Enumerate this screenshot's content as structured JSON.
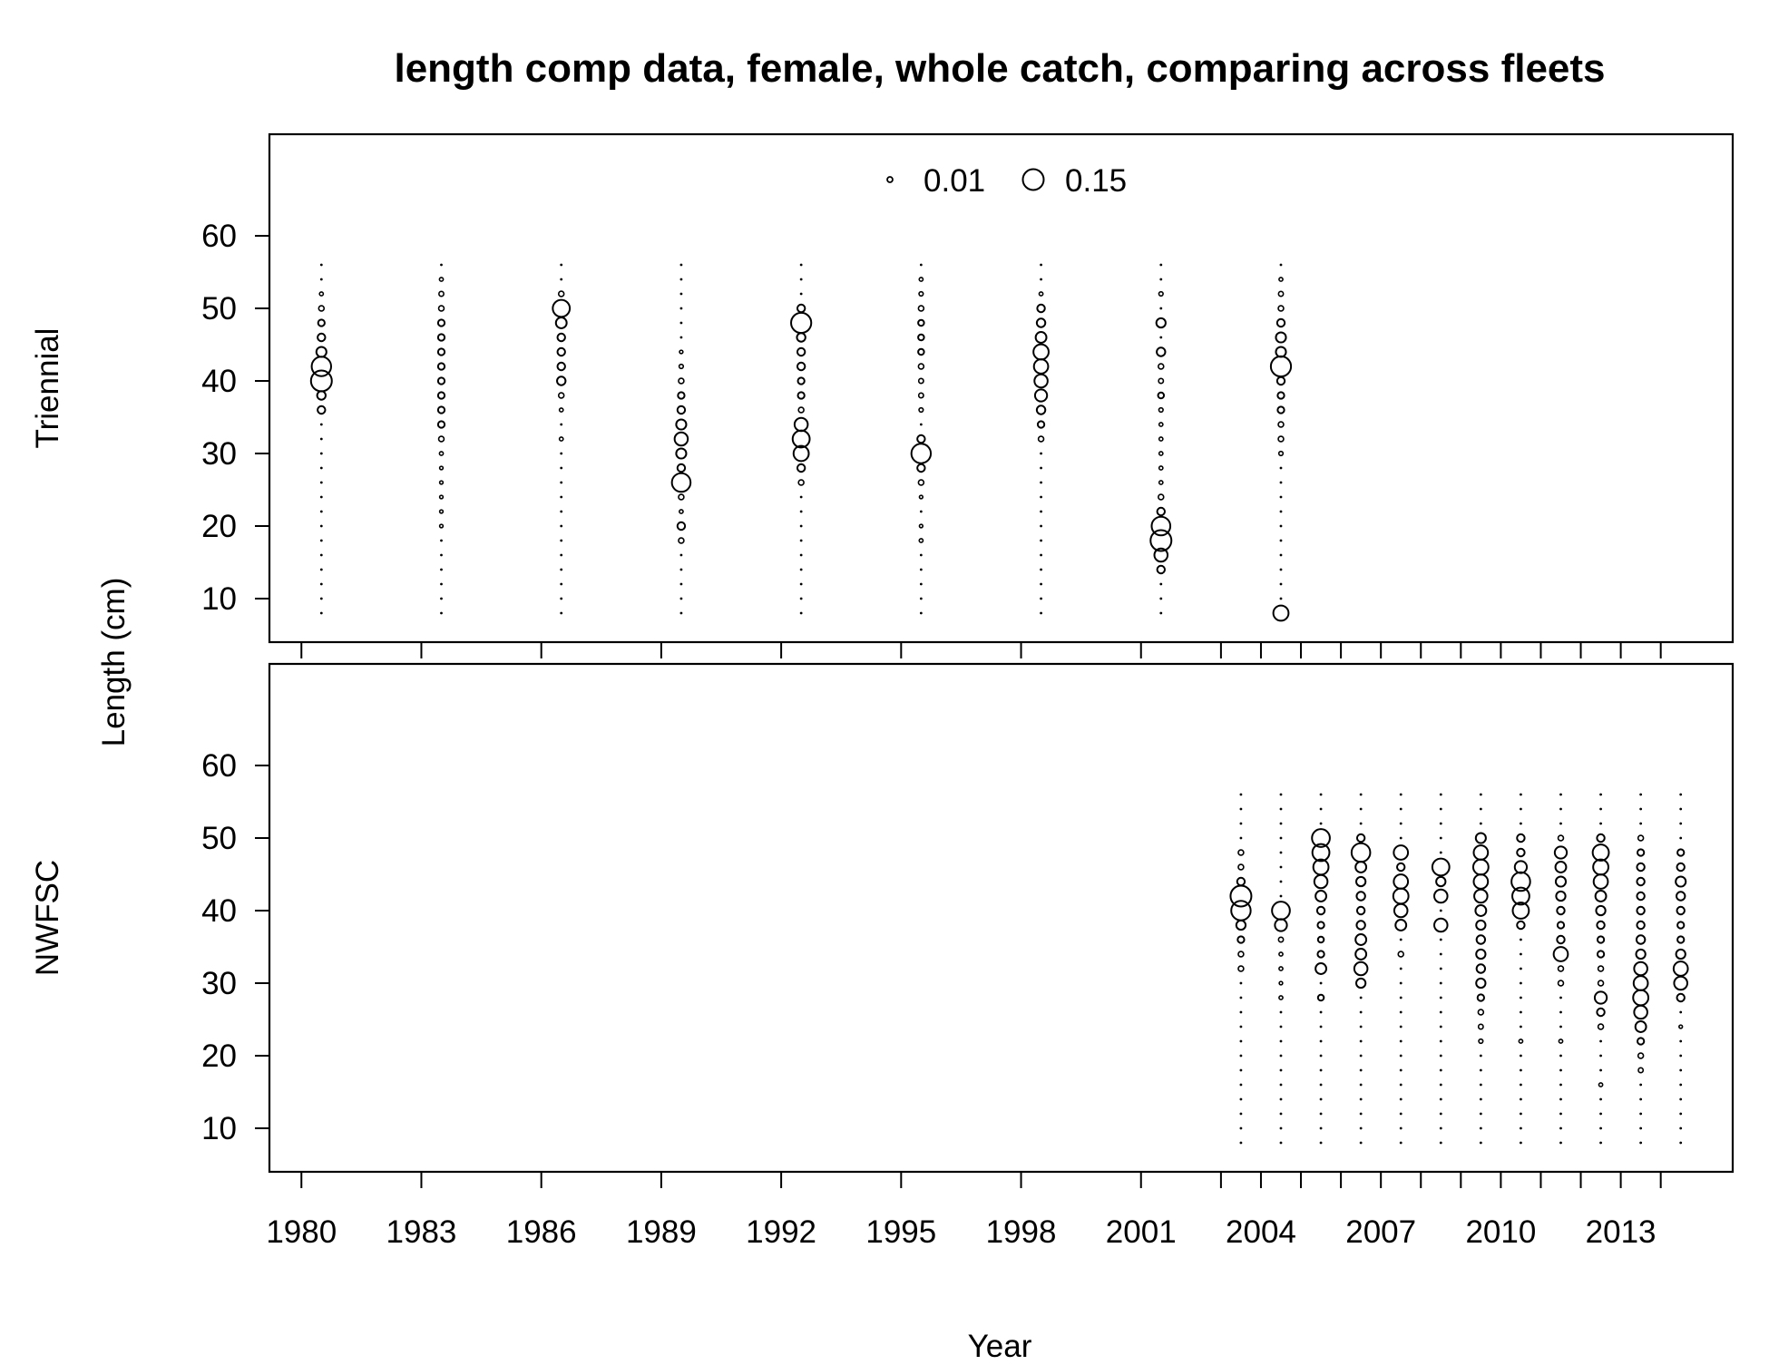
{
  "chart_data": {
    "type": "scatter",
    "title": "length comp data, female, whole catch, comparing across fleets",
    "xlabel": "Year",
    "ylabel": "Length (cm)",
    "xlim": [
      1979.2,
      2015.8
    ],
    "ylim": [
      4,
      74
    ],
    "x_ticks": [
      1980,
      1983,
      1986,
      1989,
      1992,
      1995,
      1998,
      2001,
      2004,
      2007,
      2010,
      2013
    ],
    "x_tick_marks": [
      1980,
      1983,
      1986,
      1989,
      1992,
      1995,
      1998,
      2001,
      2003,
      2004,
      2005,
      2006,
      2007,
      2008,
      2009,
      2010,
      2011,
      2012,
      2013,
      2014
    ],
    "y_ticks": [
      10,
      20,
      30,
      40,
      50,
      60
    ],
    "legend": {
      "position": "top-center",
      "entries": [
        {
          "label": "0.01",
          "value": 0.01
        },
        {
          "label": "0.15",
          "value": 0.15
        }
      ]
    },
    "length_bins": [
      8,
      10,
      12,
      14,
      16,
      18,
      20,
      22,
      24,
      26,
      28,
      30,
      32,
      34,
      36,
      38,
      40,
      42,
      44,
      46,
      48,
      50,
      52,
      54,
      56
    ],
    "panels": [
      {
        "name": "Triennial",
        "years": [
          {
            "year": 1980.5,
            "props": {
              "36": 0.02,
              "38": 0.025,
              "40": 0.15,
              "42": 0.13,
              "44": 0.035,
              "46": 0.02,
              "48": 0.015,
              "50": 0.01,
              "52": 0.005
            }
          },
          {
            "year": 1983.5,
            "props": {
              "20": 0.004,
              "22": 0.004,
              "24": 0.004,
              "26": 0.004,
              "28": 0.004,
              "30": 0.005,
              "32": 0.01,
              "34": 0.015,
              "36": 0.015,
              "38": 0.015,
              "40": 0.015,
              "42": 0.015,
              "44": 0.015,
              "46": 0.015,
              "48": 0.015,
              "50": 0.01,
              "52": 0.008,
              "54": 0.005
            }
          },
          {
            "year": 1986.5,
            "props": {
              "32": 0.005,
              "36": 0.005,
              "38": 0.01,
              "40": 0.025,
              "42": 0.02,
              "44": 0.02,
              "46": 0.02,
              "48": 0.04,
              "50": 0.1,
              "52": 0.01
            }
          },
          {
            "year": 1989.5,
            "props": {
              "18": 0.01,
              "20": 0.02,
              "22": 0.005,
              "24": 0.01,
              "26": 0.12,
              "28": 0.02,
              "30": 0.035,
              "32": 0.06,
              "34": 0.035,
              "36": 0.02,
              "38": 0.015,
              "40": 0.01,
              "42": 0.006,
              "44": 0.004
            }
          },
          {
            "year": 1992.5,
            "props": {
              "26": 0.01,
              "28": 0.02,
              "30": 0.08,
              "32": 0.1,
              "34": 0.06,
              "36": 0.01,
              "38": 0.015,
              "40": 0.015,
              "42": 0.02,
              "44": 0.02,
              "46": 0.025,
              "48": 0.14,
              "50": 0.02
            }
          },
          {
            "year": 1995.5,
            "props": {
              "18": 0.005,
              "20": 0.004,
              "24": 0.004,
              "26": 0.01,
              "28": 0.02,
              "30": 0.13,
              "32": 0.02,
              "36": 0.006,
              "38": 0.008,
              "40": 0.008,
              "42": 0.01,
              "44": 0.012,
              "46": 0.012,
              "48": 0.012,
              "50": 0.01,
              "52": 0.006,
              "54": 0.005
            }
          },
          {
            "year": 1998.5,
            "props": {
              "32": 0.01,
              "34": 0.015,
              "36": 0.025,
              "38": 0.05,
              "40": 0.06,
              "42": 0.07,
              "44": 0.08,
              "46": 0.04,
              "48": 0.025,
              "50": 0.02,
              "52": 0.005
            }
          },
          {
            "year": 2001.5,
            "props": {
              "14": 0.02,
              "16": 0.06,
              "18": 0.15,
              "20": 0.12,
              "22": 0.02,
              "24": 0.01,
              "26": 0.005,
              "28": 0.005,
              "30": 0.005,
              "32": 0.005,
              "34": 0.005,
              "36": 0.006,
              "38": 0.012,
              "40": 0.008,
              "42": 0.01,
              "44": 0.025,
              "48": 0.03,
              "52": 0.006
            }
          },
          {
            "year": 2004.5,
            "props": {
              "8": 0.08,
              "30": 0.006,
              "32": 0.01,
              "34": 0.01,
              "36": 0.015,
              "38": 0.015,
              "40": 0.02,
              "42": 0.14,
              "44": 0.035,
              "46": 0.035,
              "48": 0.02,
              "50": 0.01,
              "52": 0.008,
              "54": 0.005
            }
          }
        ]
      },
      {
        "name": "NWFSC",
        "years": [
          {
            "year": 2003.5,
            "props": {
              "32": 0.01,
              "34": 0.01,
              "36": 0.015,
              "38": 0.03,
              "40": 0.13,
              "42": 0.15,
              "44": 0.02,
              "46": 0.01,
              "48": 0.01
            }
          },
          {
            "year": 2004.5,
            "props": {
              "28": 0.005,
              "30": 0.004,
              "32": 0.005,
              "34": 0.005,
              "36": 0.008,
              "38": 0.05,
              "40": 0.11
            }
          },
          {
            "year": 2005.5,
            "props": {
              "28": 0.012,
              "32": 0.04,
              "34": 0.015,
              "36": 0.012,
              "38": 0.015,
              "40": 0.02,
              "42": 0.04,
              "44": 0.06,
              "46": 0.08,
              "48": 0.1,
              "50": 0.11
            }
          },
          {
            "year": 2006.5,
            "props": {
              "30": 0.03,
              "32": 0.06,
              "34": 0.04,
              "36": 0.04,
              "38": 0.025,
              "40": 0.02,
              "42": 0.025,
              "44": 0.03,
              "46": 0.04,
              "48": 0.12,
              "50": 0.02
            }
          },
          {
            "year": 2007.5,
            "props": {
              "34": 0.01,
              "38": 0.04,
              "40": 0.06,
              "42": 0.08,
              "44": 0.07,
              "46": 0.02,
              "48": 0.07
            }
          },
          {
            "year": 2008.5,
            "props": {
              "38": 0.06,
              "42": 0.06,
              "44": 0.03,
              "46": 0.1
            }
          },
          {
            "year": 2009.5,
            "props": {
              "22": 0.006,
              "24": 0.008,
              "26": 0.01,
              "28": 0.015,
              "30": 0.03,
              "32": 0.025,
              "34": 0.03,
              "36": 0.025,
              "38": 0.03,
              "40": 0.04,
              "42": 0.06,
              "44": 0.07,
              "46": 0.08,
              "48": 0.07,
              "50": 0.035
            }
          },
          {
            "year": 2010.5,
            "props": {
              "22": 0.005,
              "38": 0.02,
              "40": 0.09,
              "42": 0.1,
              "44": 0.12,
              "46": 0.05,
              "48": 0.02,
              "50": 0.02
            }
          },
          {
            "year": 2011.5,
            "props": {
              "22": 0.005,
              "30": 0.01,
              "32": 0.01,
              "34": 0.07,
              "36": 0.02,
              "38": 0.015,
              "40": 0.02,
              "42": 0.03,
              "44": 0.035,
              "46": 0.04,
              "48": 0.05,
              "50": 0.01
            }
          },
          {
            "year": 2012.5,
            "props": {
              "16": 0.005,
              "24": 0.01,
              "26": 0.02,
              "28": 0.05,
              "30": 0.01,
              "32": 0.01,
              "34": 0.015,
              "36": 0.015,
              "38": 0.02,
              "40": 0.03,
              "42": 0.04,
              "44": 0.07,
              "46": 0.08,
              "48": 0.09,
              "50": 0.02
            }
          },
          {
            "year": 2013.5,
            "props": {
              "18": 0.008,
              "20": 0.01,
              "22": 0.015,
              "24": 0.04,
              "26": 0.06,
              "28": 0.08,
              "30": 0.07,
              "32": 0.06,
              "34": 0.03,
              "36": 0.025,
              "38": 0.02,
              "40": 0.02,
              "42": 0.02,
              "44": 0.02,
              "46": 0.02,
              "48": 0.015,
              "50": 0.01
            }
          },
          {
            "year": 2014.5,
            "props": {
              "24": 0.004,
              "28": 0.02,
              "30": 0.06,
              "32": 0.07,
              "34": 0.03,
              "36": 0.015,
              "38": 0.015,
              "40": 0.02,
              "42": 0.025,
              "44": 0.035,
              "46": 0.02,
              "48": 0.015
            }
          }
        ]
      }
    ]
  }
}
